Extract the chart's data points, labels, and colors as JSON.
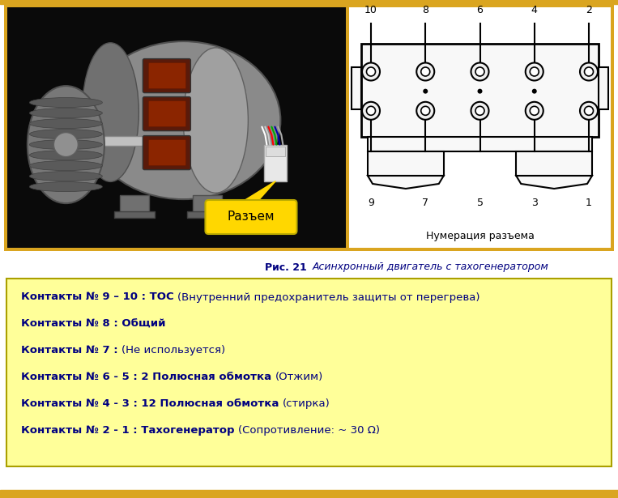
{
  "bg_color": "#FFFF99",
  "border_color": "#DAA520",
  "outer_bg": "#FFFFFF",
  "caption_bold": "Рис. 21 ",
  "caption_italic": "Асинхронный двигатель с тахогенератором",
  "caption_color": "#000080",
  "connector_label": "Разъем",
  "connector_bg": "#FFD700",
  "diagram_label": "Нумерация разъема",
  "top_pins": [
    "10",
    "8",
    "6",
    "4",
    "2"
  ],
  "bottom_pins": [
    "9",
    "7",
    "5",
    "3",
    "1"
  ],
  "lines": [
    {
      "bold_part": "Контакты № 9 – 10 : ТОС ",
      "normal_part": "(Внутренний предохранитель защиты от перегрева)"
    },
    {
      "bold_part": "Контакты № 8 : Общий",
      "normal_part": ""
    },
    {
      "bold_part": "Контакты № 7 : ",
      "normal_part": "(Не используется)"
    },
    {
      "bold_part": "Контакты № 6 - 5 : 2 Полюсная обмотка ",
      "normal_part": "(Отжим)"
    },
    {
      "bold_part": "Контакты № 4 - 3 : 12 Полюсная обмотка ",
      "normal_part": "(стирка)"
    },
    {
      "bold_part": "Контакты № 2 - 1 : Тахогенератор ",
      "normal_part": "(Сопротивление: ~ 30 Ω)"
    }
  ],
  "text_color": "#000080",
  "bottom_bar_color": "#DAA520",
  "figsize": [
    7.63,
    6.15
  ],
  "dpi": 100
}
